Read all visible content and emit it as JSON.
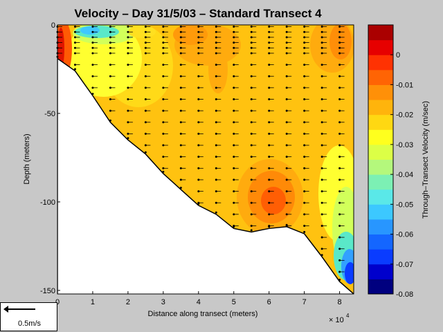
{
  "chart_data": {
    "type": "contour",
    "title": "Velocity – Day 31/5/03 – Standard Transect 4",
    "xlabel": "Distance along transect (meters)",
    "ylabel": "Depth (meters)",
    "x_multiplier": "× 10",
    "x_multiplier_exp": "4",
    "xlim": [
      0,
      8.4
    ],
    "ylim": [
      -152,
      0
    ],
    "xticks": [
      "0",
      "1",
      "2",
      "3",
      "4",
      "5",
      "6",
      "7",
      "8"
    ],
    "yticks": [
      "0",
      "-50",
      "-100",
      "-150"
    ],
    "colorbar": {
      "label": "Through–Transect Velocity (m/sec)",
      "range": [
        -0.08,
        0.01
      ],
      "ticks": [
        "0",
        "-0.01",
        "-0.02",
        "-0.03",
        "-0.04",
        "-0.05",
        "-0.06",
        "-0.07",
        "-0.08"
      ]
    },
    "bottom_profile": [
      [
        0,
        -19
      ],
      [
        0.5,
        -26
      ],
      [
        1,
        -40
      ],
      [
        1.5,
        -55
      ],
      [
        2,
        -65
      ],
      [
        2.5,
        -73
      ],
      [
        3,
        -84
      ],
      [
        3.5,
        -93
      ],
      [
        4,
        -102
      ],
      [
        4.5,
        -107
      ],
      [
        5,
        -115
      ],
      [
        5.5,
        -117
      ],
      [
        6,
        -115
      ],
      [
        6.5,
        -114
      ],
      [
        7,
        -118
      ],
      [
        7.5,
        -131
      ],
      [
        8,
        -145
      ],
      [
        8.4,
        -152
      ]
    ],
    "scale_arrow_label": "0.5m/s"
  }
}
